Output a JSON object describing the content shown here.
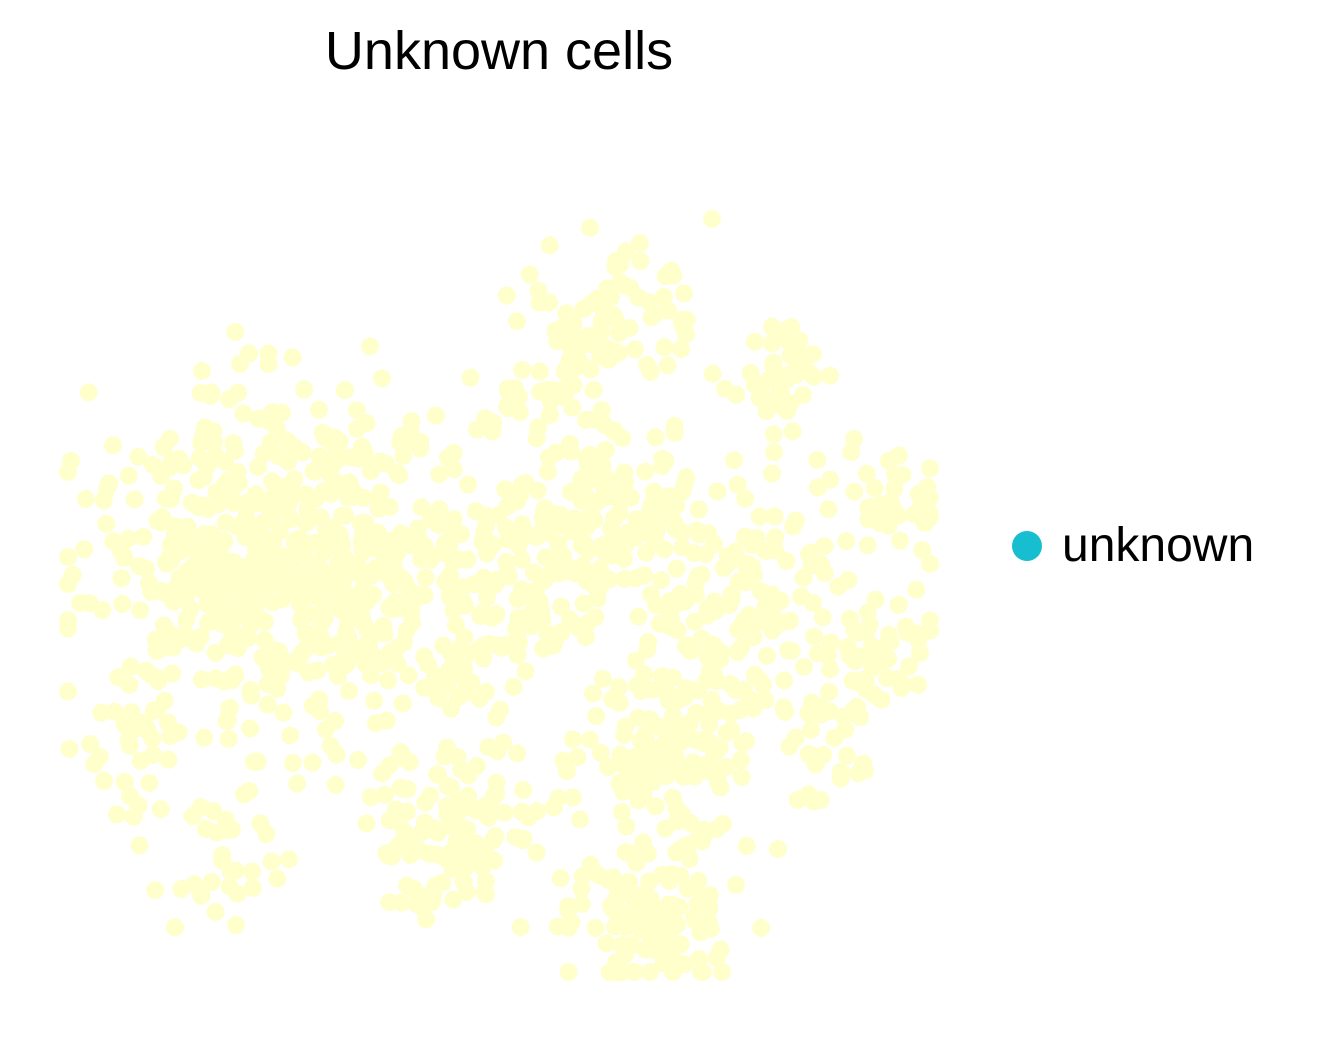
{
  "chart_data": {
    "type": "scatter",
    "title": "Unknown cells",
    "xlabel": "",
    "ylabel": "",
    "axes_visible": false,
    "grid": false,
    "legend_position": "right",
    "legend": [
      {
        "label": "unknown",
        "color": "#17becf"
      }
    ],
    "point_color": "#ffffcc",
    "clusters": [
      {
        "cx": 0.18,
        "cy": 0.52,
        "sx": 0.085,
        "sy": 0.105,
        "n": 340
      },
      {
        "cx": 0.33,
        "cy": 0.5,
        "sx": 0.065,
        "sy": 0.09,
        "n": 240
      },
      {
        "cx": 0.45,
        "cy": 0.82,
        "sx": 0.055,
        "sy": 0.055,
        "n": 130
      },
      {
        "cx": 0.48,
        "cy": 0.57,
        "sx": 0.06,
        "sy": 0.05,
        "n": 120
      },
      {
        "cx": 0.62,
        "cy": 0.47,
        "sx": 0.07,
        "sy": 0.06,
        "n": 160
      },
      {
        "cx": 0.58,
        "cy": 0.27,
        "sx": 0.04,
        "sy": 0.06,
        "n": 60
      },
      {
        "cx": 0.7,
        "cy": 0.73,
        "sx": 0.06,
        "sy": 0.07,
        "n": 160
      },
      {
        "cx": 0.64,
        "cy": 0.25,
        "sx": 0.06,
        "sy": 0.05,
        "n": 60
      },
      {
        "cx": 0.8,
        "cy": 0.56,
        "sx": 0.065,
        "sy": 0.075,
        "n": 110
      },
      {
        "cx": 0.67,
        "cy": 0.93,
        "sx": 0.05,
        "sy": 0.05,
        "n": 110
      },
      {
        "cx": 0.82,
        "cy": 0.3,
        "sx": 0.03,
        "sy": 0.04,
        "n": 40
      },
      {
        "cx": 0.95,
        "cy": 0.44,
        "sx": 0.035,
        "sy": 0.03,
        "n": 35
      },
      {
        "cx": 0.95,
        "cy": 0.62,
        "sx": 0.03,
        "sy": 0.04,
        "n": 35
      },
      {
        "cx": 0.9,
        "cy": 0.71,
        "sx": 0.03,
        "sy": 0.05,
        "n": 30
      },
      {
        "cx": 0.09,
        "cy": 0.74,
        "sx": 0.03,
        "sy": 0.05,
        "n": 30
      },
      {
        "cx": 0.18,
        "cy": 0.86,
        "sx": 0.035,
        "sy": 0.04,
        "n": 30
      }
    ],
    "seed": 20240521
  }
}
